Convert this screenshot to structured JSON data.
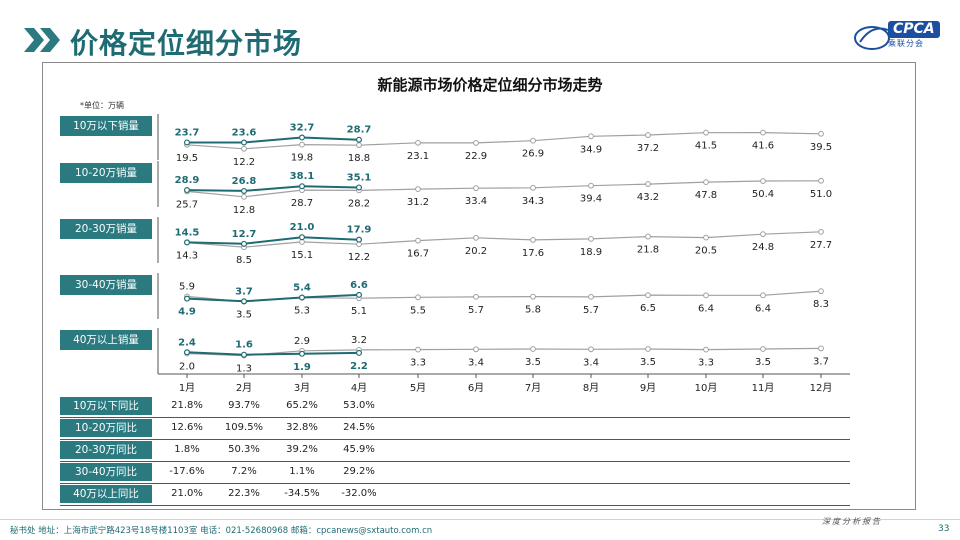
{
  "header": {
    "title": "价格定位细分市场",
    "logo_text": "CPCA",
    "logo_sub": "乘联分会"
  },
  "footer": {
    "address": "秘书处  地址：上海市武宁路423号18号楼1103室  电话：021-52680968  邮箱：cpcanews@sxtauto.com.cn",
    "right_text": "深度分析报告",
    "page_number": "33"
  },
  "colors": {
    "accent": "#2a7a80",
    "current_year": "#1f6b73",
    "previous_year": "#a0a0a0"
  },
  "chart_data": {
    "type": "line",
    "title": "新能源市场价格定位细分市场走势",
    "unit": "*单位：万辆",
    "categories": [
      "1月",
      "2月",
      "3月",
      "4月",
      "5月",
      "6月",
      "7月",
      "8月",
      "9月",
      "10月",
      "11月",
      "12月"
    ],
    "segments": [
      {
        "name": "10万以下销量",
        "current": [
          23.7,
          23.6,
          32.7,
          28.7
        ],
        "previous": [
          19.5,
          12.2,
          19.8,
          18.8,
          23.1,
          22.9,
          26.9,
          34.9,
          37.2,
          41.5,
          41.6,
          39.5
        ]
      },
      {
        "name": "10-20万销量",
        "current": [
          28.9,
          26.8,
          38.1,
          35.1
        ],
        "previous": [
          25.7,
          12.8,
          28.7,
          28.2,
          31.2,
          33.4,
          34.3,
          39.4,
          43.2,
          47.8,
          50.4,
          51.0
        ]
      },
      {
        "name": "20-30万销量",
        "current": [
          14.5,
          12.7,
          21.0,
          17.9
        ],
        "previous": [
          14.3,
          8.5,
          15.1,
          12.2,
          16.7,
          20.2,
          17.6,
          18.9,
          21.8,
          20.5,
          24.8,
          27.7
        ]
      },
      {
        "name": "30-40万销量",
        "current": [
          4.9,
          3.7,
          5.4,
          6.6
        ],
        "previous": [
          5.9,
          3.5,
          5.3,
          5.1,
          5.5,
          5.7,
          5.8,
          5.7,
          6.5,
          6.4,
          6.4,
          8.3
        ]
      },
      {
        "name": "40万以上销量",
        "current": [
          2.4,
          1.6,
          1.9,
          2.2
        ],
        "previous": [
          2.0,
          1.3,
          2.9,
          3.2,
          3.3,
          3.4,
          3.5,
          3.4,
          3.5,
          3.3,
          3.5,
          3.7
        ]
      }
    ],
    "yoy_table": {
      "rows": [
        {
          "label": "10万以下同比",
          "values": [
            "21.8%",
            "93.7%",
            "65.2%",
            "53.0%"
          ]
        },
        {
          "label": "10-20万同比",
          "values": [
            "12.6%",
            "109.5%",
            "32.8%",
            "24.5%"
          ]
        },
        {
          "label": "20-30万同比",
          "values": [
            "1.8%",
            "50.3%",
            "39.2%",
            "45.9%"
          ]
        },
        {
          "label": "30-40万同比",
          "values": [
            "-17.6%",
            "7.2%",
            "1.1%",
            "29.2%"
          ]
        },
        {
          "label": "40万以上同比",
          "values": [
            "21.0%",
            "22.3%",
            "-34.5%",
            "-32.0%"
          ]
        }
      ]
    }
  }
}
